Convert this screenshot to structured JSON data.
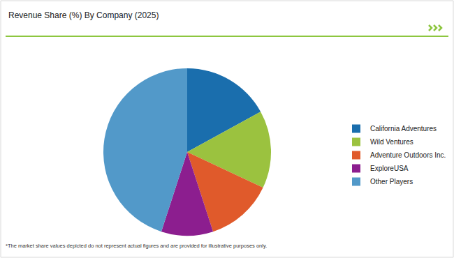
{
  "chart_data": {
    "type": "pie",
    "title": "Revenue Share (%) By Company (2025)",
    "categories": [
      "California Adventures",
      "Wild Ventures",
      "Adventure Outdoors Inc.",
      "ExploreUSA",
      "Other Players"
    ],
    "values": [
      17,
      15,
      13,
      10,
      45
    ],
    "colors": [
      "#1a6ead",
      "#9bc23f",
      "#e05a2b",
      "#8c1e8f",
      "#5299c9"
    ],
    "legend": "right",
    "annotation": "*The market share values depicted do not represent actual figures and are provided for illustrative purposes only."
  }
}
